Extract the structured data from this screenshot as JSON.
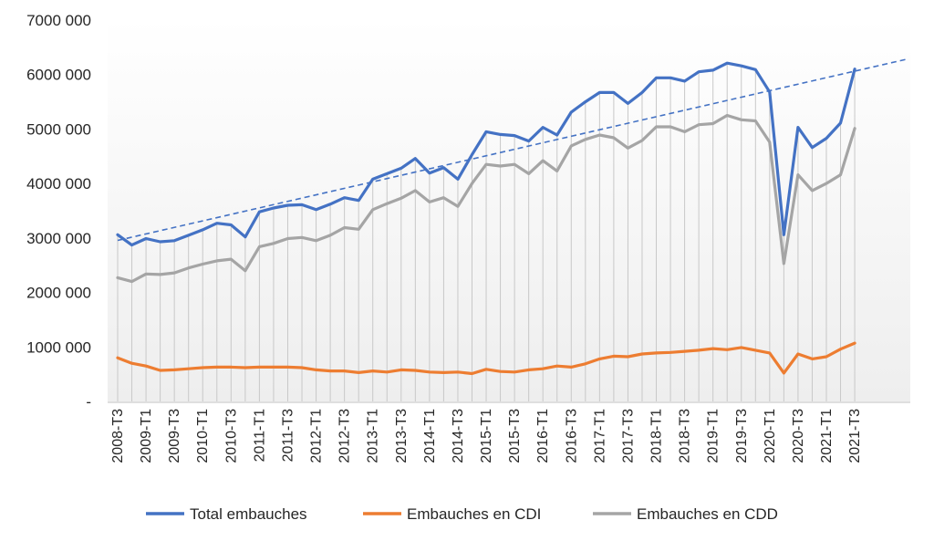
{
  "chart_data": {
    "type": "line",
    "title": "",
    "xlabel": "",
    "ylabel": "",
    "ylim": [
      0,
      7000000
    ],
    "y_tick_labels": [
      "-",
      "1000 000",
      "2000 000",
      "3000 000",
      "4000 000",
      "5000 000",
      "6000 000",
      "7000 000"
    ],
    "grid": "vertical drop lines at each quarter",
    "legend_position": "bottom",
    "x": [
      "2008-T3",
      "2008-T4",
      "2009-T1",
      "2009-T2",
      "2009-T3",
      "2009-T4",
      "2010-T1",
      "2010-T2",
      "2010-T3",
      "2010-T4",
      "2011-T1",
      "2011-T2",
      "2011-T3",
      "2011-T4",
      "2012-T1",
      "2012-T2",
      "2012-T3",
      "2012-T4",
      "2013-T1",
      "2013-T2",
      "2013-T3",
      "2013-T4",
      "2014-T1",
      "2014-T2",
      "2014-T3",
      "2014-T4",
      "2015-T1",
      "2015-T2",
      "2015-T3",
      "2015-T4",
      "2016-T1",
      "2016-T2",
      "2016-T3",
      "2016-T4",
      "2017-T1",
      "2017-T2",
      "2017-T3",
      "2017-T4",
      "2018-T1",
      "2018-T2",
      "2018-T3",
      "2018-T4",
      "2019-T1",
      "2019-T2",
      "2019-T3",
      "2019-T4",
      "2020-T1",
      "2020-T2",
      "2020-T3",
      "2020-T4",
      "2021-T1",
      "2021-T2",
      "2021-T3"
    ],
    "x_tick_labels": [
      "2008-T3",
      "2009-T1",
      "2009-T3",
      "2010-T1",
      "2010-T3",
      "2011-T1",
      "2011-T3",
      "2012-T1",
      "2012-T3",
      "2013-T1",
      "2013-T3",
      "2014-T1",
      "2014-T3",
      "2015-T1",
      "2015-T3",
      "2016-T1",
      "2016-T3",
      "2017-T1",
      "2017-T3",
      "2018-T1",
      "2018-T3",
      "2019-T1",
      "2019-T3",
      "2020-T1",
      "2020-T3",
      "2021-T1",
      "2021-T3"
    ],
    "series": [
      {
        "name": "Total embauches",
        "color": "#4472C4",
        "values": [
          3060000,
          2870000,
          2990000,
          2930000,
          2950000,
          3050000,
          3150000,
          3270000,
          3240000,
          3020000,
          3480000,
          3550000,
          3600000,
          3610000,
          3520000,
          3620000,
          3740000,
          3690000,
          4080000,
          4180000,
          4280000,
          4460000,
          4190000,
          4290000,
          4080000,
          4530000,
          4950000,
          4900000,
          4880000,
          4780000,
          5030000,
          4890000,
          5310000,
          5500000,
          5670000,
          5670000,
          5470000,
          5670000,
          5940000,
          5940000,
          5880000,
          6050000,
          6080000,
          6210000,
          6160000,
          6090000,
          5680000,
          3060000,
          5030000,
          4660000,
          4830000,
          5110000,
          6100000
        ]
      },
      {
        "name": "Embauches en CDI",
        "color": "#ED7D31",
        "values": [
          800000,
          700000,
          650000,
          570000,
          580000,
          600000,
          620000,
          630000,
          630000,
          620000,
          630000,
          630000,
          630000,
          620000,
          580000,
          560000,
          560000,
          530000,
          560000,
          540000,
          580000,
          570000,
          540000,
          530000,
          540000,
          510000,
          590000,
          550000,
          540000,
          580000,
          600000,
          650000,
          630000,
          690000,
          780000,
          830000,
          820000,
          870000,
          890000,
          900000,
          920000,
          940000,
          970000,
          950000,
          990000,
          940000,
          890000,
          520000,
          870000,
          780000,
          820000,
          960000,
          1070000
        ]
      },
      {
        "name": "Embauches en CDD",
        "color": "#A5A5A5",
        "values": [
          2270000,
          2200000,
          2340000,
          2330000,
          2360000,
          2450000,
          2520000,
          2580000,
          2610000,
          2400000,
          2840000,
          2900000,
          2990000,
          3010000,
          2950000,
          3050000,
          3190000,
          3160000,
          3520000,
          3630000,
          3730000,
          3870000,
          3660000,
          3740000,
          3580000,
          4000000,
          4350000,
          4320000,
          4350000,
          4180000,
          4420000,
          4230000,
          4690000,
          4810000,
          4890000,
          4840000,
          4650000,
          4790000,
          5040000,
          5040000,
          4950000,
          5080000,
          5100000,
          5250000,
          5170000,
          5150000,
          4760000,
          2530000,
          4160000,
          3870000,
          4000000,
          4160000,
          5010000
        ]
      }
    ],
    "trendline": {
      "series": "Total embauches",
      "style": "dashed linear",
      "color": "#4472C4"
    }
  }
}
